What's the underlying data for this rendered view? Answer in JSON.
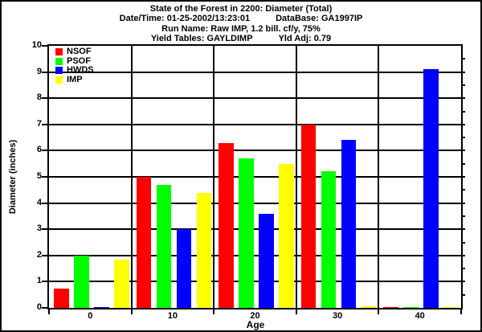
{
  "header": {
    "title": "State of the Forest in 2200: Diameter (Total)",
    "datetime": "Date/Time: 01-25-2002/13:23:01",
    "database": "DataBase: GA1997IP",
    "run_name": "Run Name: Raw IMP, 1.2 bill. cf/y, 75%",
    "yield_tables": "Yield Tables: GAYLDIMP",
    "yld_adj": "Yld Adj: 0.79"
  },
  "colors": {
    "background": "#ffffff",
    "axis": "#000000",
    "nsof": "#ff0000",
    "psof": "#00ff00",
    "hwds": "#0000ff",
    "imp": "#ffff00"
  },
  "chart_data": {
    "type": "bar",
    "title": "State of the Forest in 2200: Diameter (Total)",
    "categories": [
      "0",
      "10",
      "20",
      "30",
      "40"
    ],
    "series": [
      {
        "name": "NSOF",
        "color": "#ff0000",
        "values": [
          0.75,
          5.0,
          6.3,
          7.0,
          0.04
        ]
      },
      {
        "name": "PSOF",
        "color": "#00ff00",
        "values": [
          2.0,
          4.7,
          5.7,
          5.2,
          0.04
        ]
      },
      {
        "name": "HWDS",
        "color": "#0000ff",
        "values": [
          0.04,
          3.0,
          3.6,
          6.4,
          9.1
        ]
      },
      {
        "name": "IMP",
        "color": "#ffff00",
        "values": [
          1.85,
          4.4,
          5.5,
          0.05,
          0.04
        ]
      }
    ],
    "xlabel": "Age",
    "ylabel": "Diameter (inches)",
    "ylim": [
      0,
      10
    ],
    "yticks": [
      0,
      1,
      2,
      3,
      4,
      5,
      6,
      7,
      8,
      9,
      10
    ],
    "grid": true,
    "legend_position": "top-left"
  }
}
